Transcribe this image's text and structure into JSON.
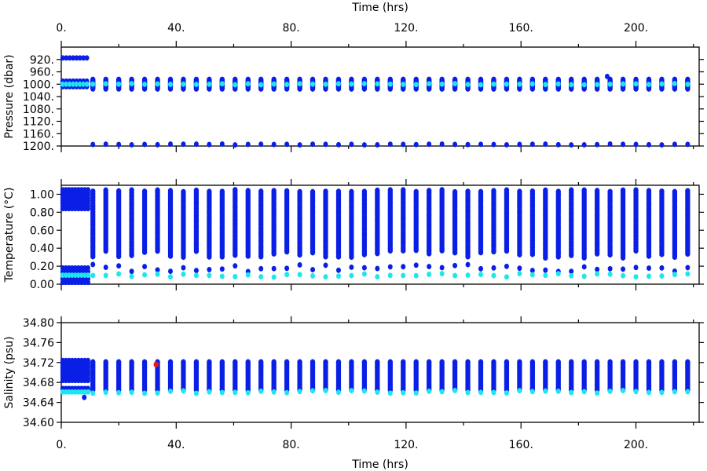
{
  "top_axis_label": "Time (hrs)",
  "bottom_axis_label": "Time (hrs)",
  "colors": {
    "profile": "#0a1fe6",
    "surface": "#1ee6ee",
    "flag": "#e51a1a"
  },
  "chart_data": [
    {
      "type": "scatter",
      "ylabel": "Pressure (dbar)",
      "xlim": [
        0,
        222
      ],
      "ylim": [
        1200,
        880
      ],
      "x_ticks": [
        "0.",
        "40.",
        "80.",
        "120.",
        "160.",
        "200."
      ],
      "x_tick_values": [
        0,
        40,
        80,
        120,
        160,
        200
      ],
      "y_ticks": [
        "920.",
        "960.",
        "1000.",
        "1040.",
        "1080.",
        "1120.",
        "1160.",
        "1200."
      ],
      "y_tick_values": [
        920,
        960,
        1000,
        1040,
        1080,
        1120,
        1160,
        1200
      ],
      "profile_band": [
        985,
        1015
      ],
      "surface_value": 1000,
      "bottom_value": 1195,
      "early_top_value": 915,
      "outlier": {
        "x": 190,
        "y": 975
      }
    },
    {
      "type": "scatter",
      "ylabel": "Temperature (°C)",
      "xlim": [
        0,
        222
      ],
      "ylim": [
        0,
        1.1
      ],
      "y_ticks": [
        "0.00",
        "0.20",
        "0.40",
        "0.60",
        "0.80",
        "1.00"
      ],
      "y_tick_values": [
        0,
        0.2,
        0.4,
        0.6,
        0.8,
        1.0
      ],
      "profile_band": [
        0.28,
        1.05
      ],
      "lower_value": 0.18,
      "surface_value": 0.09
    },
    {
      "type": "scatter",
      "ylabel": "Salinity (psu)",
      "xlim": [
        0,
        222
      ],
      "ylim": [
        34.6,
        34.8
      ],
      "y_ticks": [
        "34.60",
        "34.64",
        "34.68",
        "34.72",
        "34.76",
        "34.80"
      ],
      "y_tick_values": [
        34.6,
        34.64,
        34.68,
        34.72,
        34.76,
        34.8
      ],
      "profile_band": [
        34.665,
        34.724
      ],
      "surface_value": 34.661,
      "flag_point": {
        "x": 33,
        "y": 34.716
      }
    }
  ]
}
